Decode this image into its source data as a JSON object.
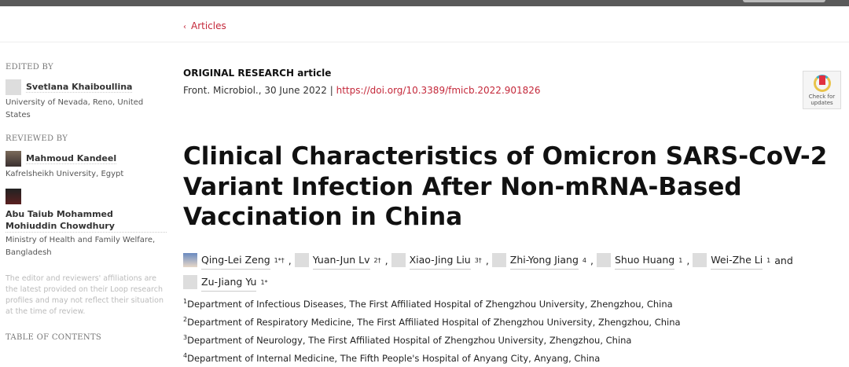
{
  "nav": {
    "back_label": "Articles"
  },
  "sidebar": {
    "edited_by": "EDITED BY",
    "editor": {
      "name": "Svetlana Khaiboullina",
      "affiliation": "University of Nevada, Reno, United States"
    },
    "reviewed_by": "REVIEWED BY",
    "reviewers": [
      {
        "name": "Mahmoud Kandeel",
        "affiliation": "Kafrelsheikh University, Egypt"
      },
      {
        "name": "Abu Taiub Mohammed Mohiuddin Chowdhury",
        "affiliation": "Ministry of Health and Family Welfare, Bangladesh"
      }
    ],
    "note": "The editor and reviewers' affiliations are the latest provided on their Loop research profiles and may not reflect their situation at the time of review.",
    "toc": "TABLE OF CONTENTS"
  },
  "article": {
    "type": "ORIGINAL RESEARCH article",
    "citation": "Front. Microbiol., 30 June 2022 |",
    "doi": "https://doi.org/10.3389/fmicb.2022.901826",
    "badge": "Check for updates",
    "title": "Clinical Characteristics of Omicron SARS-CoV-2 Variant Infection After Non-mRNA-Based Vaccination in China",
    "authors": [
      {
        "name": "Qing-Lei Zeng",
        "sup": "1*†",
        "sep": ","
      },
      {
        "name": "Yuan-Jun Lv",
        "sup": "2†",
        "sep": ","
      },
      {
        "name": "Xiao-Jing Liu",
        "sup": "3†",
        "sep": ","
      },
      {
        "name": "Zhi-Yong Jiang",
        "sup": "4",
        "sep": ","
      },
      {
        "name": "Shuo Huang",
        "sup": "1",
        "sep": ","
      },
      {
        "name": "Wei-Zhe Li",
        "sup": "1",
        "sep": " and"
      },
      {
        "name": "Zu-Jiang Yu",
        "sup": "1*",
        "sep": ""
      }
    ],
    "affiliations": [
      {
        "num": "1",
        "text": "Department of Infectious Diseases, The First Affiliated Hospital of Zhengzhou University, Zhengzhou, China"
      },
      {
        "num": "2",
        "text": "Department of Respiratory Medicine, The First Affiliated Hospital of Zhengzhou University, Zhengzhou, China"
      },
      {
        "num": "3",
        "text": "Department of Neurology, The First Affiliated Hospital of Zhengzhou University, Zhengzhou, China"
      },
      {
        "num": "4",
        "text": "Department of Internal Medicine, The Fifth People's Hospital of Anyang City, Anyang, China"
      }
    ]
  },
  "colors": {
    "accent": "#c4283a",
    "topbar": "#5a5a5a"
  }
}
